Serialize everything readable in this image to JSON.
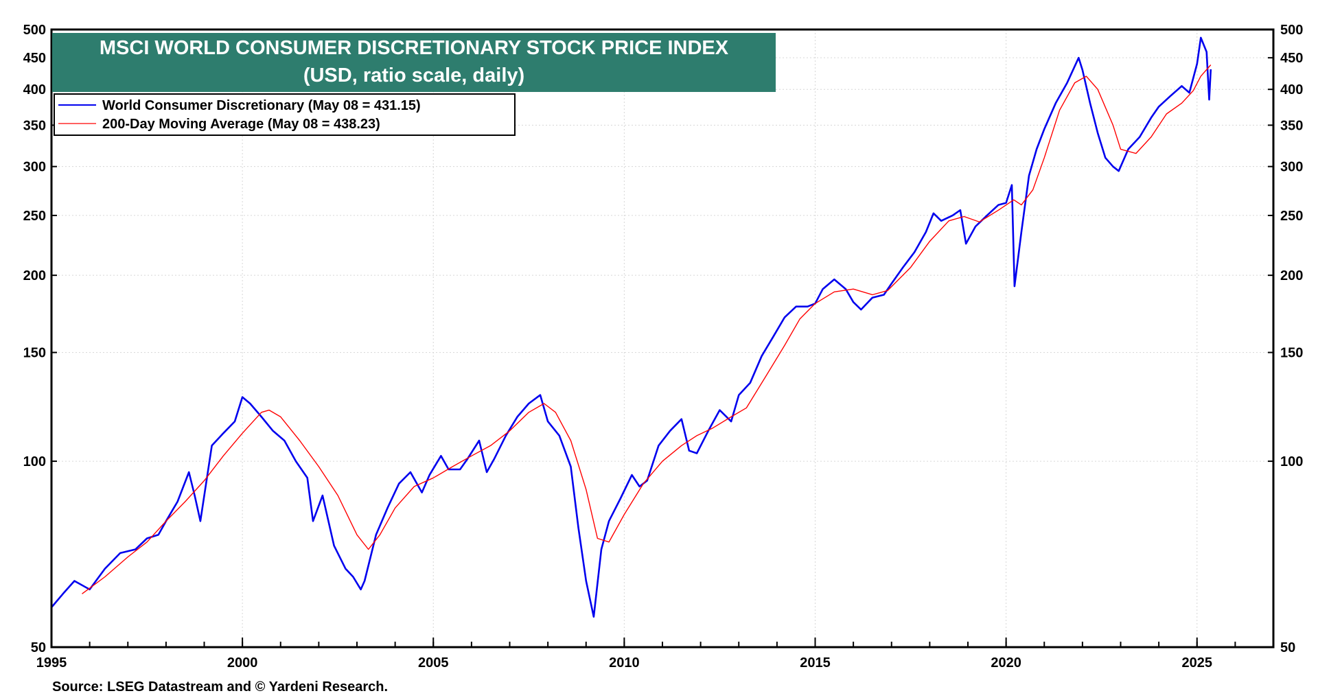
{
  "chart_data": {
    "type": "line",
    "title": "MSCI WORLD CONSUMER DISCRETIONARY STOCK PRICE INDEX",
    "subtitle": "(USD, ratio scale, daily)",
    "scale": "log",
    "ylim": [
      50,
      500
    ],
    "xlim": [
      1995,
      2027
    ],
    "y_ticks": [
      50,
      100,
      150,
      200,
      250,
      300,
      350,
      400,
      450,
      500
    ],
    "x_ticks": [
      1995,
      2000,
      2005,
      2010,
      2015,
      2020,
      2025
    ],
    "grid": true,
    "legend_position": "top-left",
    "colors": {
      "index": "#0000ee",
      "ma": "#ff0000",
      "title_bg": "#2e7d6e",
      "frame": "#000000"
    },
    "series": [
      {
        "name": "World Consumer Discretionary (May 08 = 431.15)",
        "color": "#0000ee",
        "x": [
          1995.0,
          1995.3,
          1995.6,
          1996.0,
          1996.4,
          1996.8,
          1997.2,
          1997.5,
          1997.8,
          1998.0,
          1998.3,
          1998.6,
          1998.75,
          1998.9,
          1999.2,
          1999.5,
          1999.8,
          2000.0,
          2000.2,
          2000.5,
          2000.8,
          2001.1,
          2001.4,
          2001.7,
          2001.85,
          2002.1,
          2002.4,
          2002.7,
          2002.9,
          2003.1,
          2003.2,
          2003.5,
          2003.8,
          2004.1,
          2004.4,
          2004.7,
          2004.9,
          2005.2,
          2005.4,
          2005.7,
          2005.9,
          2006.2,
          2006.4,
          2006.6,
          2006.9,
          2007.2,
          2007.5,
          2007.8,
          2008.0,
          2008.3,
          2008.6,
          2008.8,
          2009.0,
          2009.2,
          2009.4,
          2009.6,
          2009.9,
          2010.2,
          2010.4,
          2010.6,
          2010.9,
          2011.2,
          2011.5,
          2011.7,
          2011.9,
          2012.2,
          2012.5,
          2012.8,
          2013.0,
          2013.3,
          2013.6,
          2013.9,
          2014.2,
          2014.5,
          2014.8,
          2015.0,
          2015.2,
          2015.5,
          2015.8,
          2016.0,
          2016.2,
          2016.5,
          2016.8,
          2017.0,
          2017.3,
          2017.6,
          2017.9,
          2018.1,
          2018.3,
          2018.6,
          2018.8,
          2018.95,
          2019.2,
          2019.5,
          2019.8,
          2020.0,
          2020.15,
          2020.22,
          2020.4,
          2020.6,
          2020.8,
          2021.0,
          2021.3,
          2021.6,
          2021.9,
          2022.0,
          2022.2,
          2022.4,
          2022.6,
          2022.8,
          2022.95,
          2023.2,
          2023.5,
          2023.8,
          2024.0,
          2024.3,
          2024.6,
          2024.8,
          2025.0,
          2025.1,
          2025.25,
          2025.32,
          2025.36
        ],
        "values": [
          58,
          61,
          64,
          62,
          67,
          71,
          72,
          75,
          76,
          80,
          86,
          96,
          88,
          80,
          106,
          111,
          116,
          127,
          124,
          118,
          112,
          108,
          100,
          94,
          80,
          88,
          73,
          67,
          65,
          62,
          64,
          76,
          84,
          92,
          96,
          89,
          95,
          102,
          97,
          97,
          101,
          108,
          96,
          101,
          110,
          118,
          124,
          128,
          116,
          110,
          98,
          78,
          64,
          56,
          72,
          80,
          87,
          95,
          91,
          93,
          106,
          112,
          117,
          104,
          103,
          112,
          121,
          116,
          128,
          134,
          148,
          159,
          171,
          178,
          178,
          180,
          190,
          197,
          190,
          181,
          176,
          184,
          186,
          194,
          206,
          218,
          235,
          252,
          245,
          250,
          255,
          225,
          240,
          250,
          260,
          262,
          280,
          192,
          235,
          290,
          320,
          345,
          380,
          410,
          450,
          430,
          380,
          340,
          310,
          300,
          295,
          320,
          335,
          360,
          375,
          390,
          405,
          395,
          440,
          485,
          460,
          385,
          431.15
        ]
      },
      {
        "name": "200-Day Moving Average (May 08 = 438.23)",
        "color": "#ff0000",
        "x": [
          1995.8,
          1996.4,
          1997.0,
          1997.5,
          1998.0,
          1998.5,
          1999.0,
          1999.5,
          2000.0,
          2000.5,
          2000.7,
          2001.0,
          2001.5,
          2002.0,
          2002.5,
          2003.0,
          2003.3,
          2003.6,
          2004.0,
          2004.5,
          2005.0,
          2005.5,
          2006.0,
          2006.5,
          2007.0,
          2007.5,
          2007.9,
          2008.2,
          2008.6,
          2009.0,
          2009.3,
          2009.6,
          2010.0,
          2010.5,
          2011.0,
          2011.5,
          2011.9,
          2012.3,
          2012.8,
          2013.2,
          2013.7,
          2014.2,
          2014.6,
          2015.0,
          2015.5,
          2016.0,
          2016.5,
          2016.9,
          2017.5,
          2018.0,
          2018.5,
          2018.9,
          2019.3,
          2019.8,
          2020.2,
          2020.4,
          2020.7,
          2021.0,
          2021.4,
          2021.8,
          2022.1,
          2022.4,
          2022.8,
          2023.0,
          2023.4,
          2023.8,
          2024.2,
          2024.6,
          2024.9,
          2025.1,
          2025.36
        ],
        "values": [
          61,
          65,
          70,
          74,
          80,
          86,
          93,
          102,
          111,
          120,
          121,
          118,
          108,
          98,
          88,
          76,
          72,
          76,
          84,
          91,
          94,
          98,
          102,
          106,
          112,
          120,
          124,
          120,
          108,
          90,
          75,
          74,
          82,
          92,
          100,
          106,
          110,
          113,
          118,
          122,
          137,
          154,
          170,
          180,
          188,
          190,
          186,
          189,
          206,
          227,
          245,
          249,
          244,
          255,
          265,
          260,
          275,
          310,
          370,
          410,
          420,
          400,
          350,
          320,
          315,
          335,
          365,
          380,
          398,
          420,
          438.23
        ]
      }
    ]
  },
  "source": "Source: LSEG Datastream and © Yardeni Research."
}
